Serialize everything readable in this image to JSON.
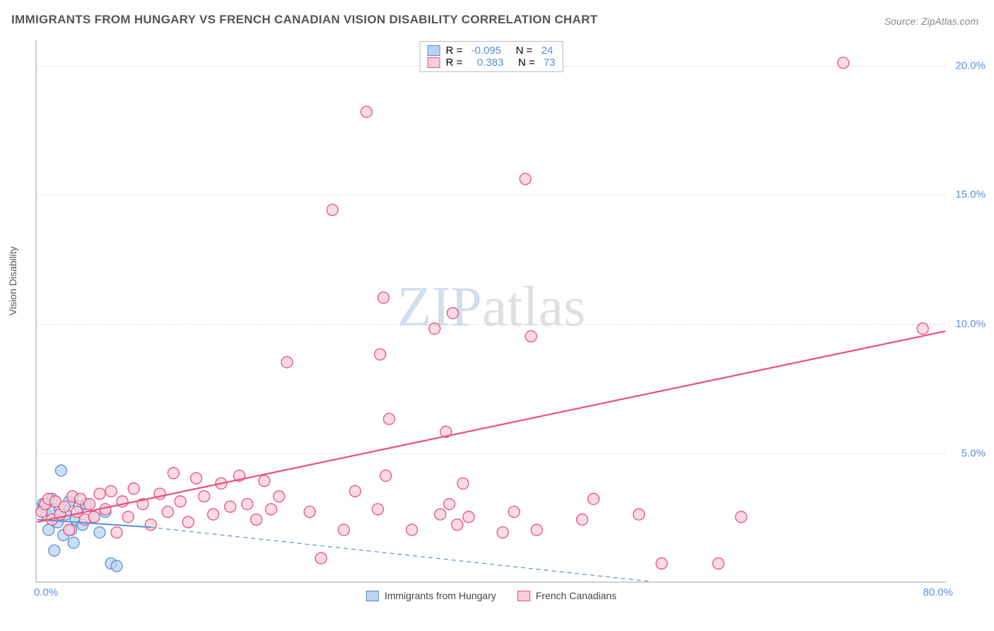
{
  "title": "IMMIGRANTS FROM HUNGARY VS FRENCH CANADIAN VISION DISABILITY CORRELATION CHART",
  "source": "Source: ZipAtlas.com",
  "y_axis_label": "Vision Disability",
  "watermark": {
    "part1": "ZIP",
    "part2": "atlas"
  },
  "chart": {
    "type": "scatter",
    "xlim": [
      0,
      80
    ],
    "ylim": [
      0,
      21
    ],
    "x_ticks": [
      {
        "value": 0,
        "label": "0.0%"
      },
      {
        "value": 80,
        "label": "80.0%"
      }
    ],
    "y_ticks": [
      {
        "value": 5,
        "label": "5.0%"
      },
      {
        "value": 10,
        "label": "10.0%"
      },
      {
        "value": 15,
        "label": "15.0%"
      },
      {
        "value": 20,
        "label": "20.0%"
      }
    ],
    "grid_color": "#dcdcdc",
    "axis_color": "#cfcfcf",
    "background_color": "#ffffff",
    "marker_radius": 8,
    "marker_stroke_width": 1.3,
    "series": [
      {
        "id": "hungary",
        "legend_label": "Immigrants from Hungary",
        "fill": "#b9d3f0",
        "stroke": "#5a8fd6",
        "R": "-0.095",
        "N": "24",
        "trend": {
          "x1": 0,
          "y1": 2.4,
          "x2": 10,
          "y2": 2.1,
          "dashed_extend_to": 54,
          "y_extend": 0,
          "color": "#5a8fd6",
          "width": 2
        },
        "points": [
          [
            0.5,
            3.0
          ],
          [
            0.6,
            2.9
          ],
          [
            0.8,
            2.6
          ],
          [
            1.0,
            2.0
          ],
          [
            1.2,
            2.7
          ],
          [
            1.3,
            3.2
          ],
          [
            1.5,
            1.2
          ],
          [
            1.8,
            2.3
          ],
          [
            2.0,
            2.8
          ],
          [
            2.1,
            4.3
          ],
          [
            2.3,
            1.8
          ],
          [
            2.5,
            2.6
          ],
          [
            2.8,
            3.1
          ],
          [
            3.0,
            2.0
          ],
          [
            3.2,
            1.5
          ],
          [
            3.4,
            2.4
          ],
          [
            3.7,
            2.9
          ],
          [
            4.0,
            2.2
          ],
          [
            4.3,
            3.0
          ],
          [
            5.0,
            2.5
          ],
          [
            5.5,
            1.9
          ],
          [
            6.0,
            2.7
          ],
          [
            6.5,
            0.7
          ],
          [
            7.0,
            0.6
          ]
        ]
      },
      {
        "id": "french",
        "legend_label": "French Canadians",
        "fill": "#f8cdd9",
        "stroke": "#e94f7a",
        "R": "0.383",
        "N": "73",
        "trend": {
          "x1": 0,
          "y1": 2.3,
          "x2": 80,
          "y2": 9.7,
          "color": "#e94f7a",
          "width": 2.2
        },
        "points": [
          [
            0.4,
            2.7
          ],
          [
            0.7,
            3.0
          ],
          [
            1.0,
            3.2
          ],
          [
            1.3,
            2.4
          ],
          [
            1.6,
            3.1
          ],
          [
            2.0,
            2.6
          ],
          [
            2.4,
            2.9
          ],
          [
            2.8,
            2.0
          ],
          [
            3.1,
            3.3
          ],
          [
            3.5,
            2.7
          ],
          [
            3.8,
            3.2
          ],
          [
            4.2,
            2.4
          ],
          [
            4.6,
            3.0
          ],
          [
            5.0,
            2.5
          ],
          [
            5.5,
            3.4
          ],
          [
            6.0,
            2.8
          ],
          [
            6.5,
            3.5
          ],
          [
            7.0,
            1.9
          ],
          [
            7.5,
            3.1
          ],
          [
            8.0,
            2.5
          ],
          [
            8.5,
            3.6
          ],
          [
            9.3,
            3.0
          ],
          [
            10.0,
            2.2
          ],
          [
            10.8,
            3.4
          ],
          [
            11.5,
            2.7
          ],
          [
            12.0,
            4.2
          ],
          [
            12.6,
            3.1
          ],
          [
            13.3,
            2.3
          ],
          [
            14.0,
            4.0
          ],
          [
            14.7,
            3.3
          ],
          [
            15.5,
            2.6
          ],
          [
            16.2,
            3.8
          ],
          [
            17.0,
            2.9
          ],
          [
            17.8,
            4.1
          ],
          [
            18.5,
            3.0
          ],
          [
            19.3,
            2.4
          ],
          [
            20.0,
            3.9
          ],
          [
            20.6,
            2.8
          ],
          [
            21.3,
            3.3
          ],
          [
            22.0,
            8.5
          ],
          [
            24.0,
            2.7
          ],
          [
            25.0,
            0.9
          ],
          [
            26.0,
            14.4
          ],
          [
            27.0,
            2.0
          ],
          [
            28.0,
            3.5
          ],
          [
            29.0,
            18.2
          ],
          [
            30.0,
            2.8
          ],
          [
            30.2,
            8.8
          ],
          [
            30.5,
            11.0
          ],
          [
            30.7,
            4.1
          ],
          [
            31.0,
            6.3
          ],
          [
            33.0,
            2.0
          ],
          [
            35.0,
            9.8
          ],
          [
            35.5,
            2.6
          ],
          [
            36.0,
            5.8
          ],
          [
            36.3,
            3.0
          ],
          [
            36.6,
            10.4
          ],
          [
            37.0,
            2.2
          ],
          [
            37.5,
            3.8
          ],
          [
            38.0,
            2.5
          ],
          [
            41.0,
            1.9
          ],
          [
            42.0,
            2.7
          ],
          [
            43.0,
            15.6
          ],
          [
            43.5,
            9.5
          ],
          [
            44.0,
            2.0
          ],
          [
            48.0,
            2.4
          ],
          [
            49.0,
            3.2
          ],
          [
            53.0,
            2.6
          ],
          [
            55.0,
            0.7
          ],
          [
            60.0,
            0.7
          ],
          [
            62.0,
            2.5
          ],
          [
            71.0,
            20.1
          ],
          [
            78.0,
            9.8
          ]
        ]
      }
    ]
  }
}
